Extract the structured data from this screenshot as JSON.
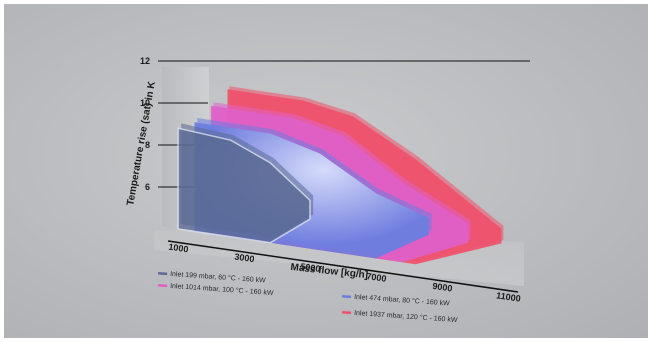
{
  "chart_data": {
    "type": "area",
    "style": "3d-layered",
    "ylabel": "Temperature rise (sat) in K",
    "xlabel": "Mass flow [kg/h]",
    "x_ticks": [
      "1000",
      "3000",
      "5000",
      "7000",
      "9000",
      "11000"
    ],
    "y_ticks": [
      "6",
      "8",
      "10",
      "12"
    ],
    "ylim": [
      4,
      12
    ],
    "xlim": [
      1000,
      11000
    ],
    "grid": true,
    "legend_position": "bottom",
    "series": [
      {
        "name": "Inlet 1937 mbar, 120 °C - 160 kW",
        "color": "#f0506a",
        "x": [
          2500,
          4800,
          6300,
          8200,
          10800
        ],
        "upper": [
          11.0,
          11.0,
          10.6,
          9.0,
          6.3
        ],
        "lower": [
          4.0,
          4.0,
          4.0,
          4.0,
          5.6
        ]
      },
      {
        "name": "Inlet 1014 mbar, 100 °C - 160 kW",
        "color": "#e060c8",
        "x": [
          2000,
          4500,
          6000,
          7800,
          9800
        ],
        "upper": [
          10.1,
          10.1,
          9.6,
          7.8,
          6.3
        ],
        "lower": [
          4.0,
          4.0,
          4.0,
          4.0,
          5.4
        ]
      },
      {
        "name": "Inlet 474 mbar, 80 °C - 160 kW",
        "color": "#6a7ee0",
        "x": [
          1500,
          3800,
          5300,
          7000,
          8600
        ],
        "upper": [
          9.2,
          9.2,
          8.6,
          7.1,
          6.3
        ],
        "lower": [
          4.0,
          4.0,
          4.0,
          4.0,
          5.5
        ]
      },
      {
        "name": "Inlet 199 mbar, 60 °C - 160 kW",
        "color": "#5a6a94",
        "x": [
          1000,
          2600,
          3800,
          5000
        ],
        "upper": [
          8.8,
          8.6,
          7.8,
          6.3
        ],
        "lower": [
          4.0,
          4.0,
          4.0,
          5.4
        ]
      }
    ]
  }
}
